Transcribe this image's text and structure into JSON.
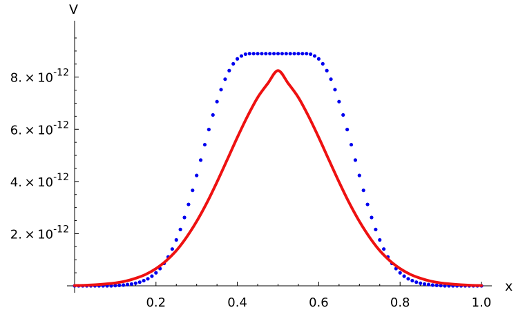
{
  "chart_data": {
    "type": "line",
    "xlabel": "x",
    "ylabel": "V",
    "xlim": [
      0.0,
      1.0
    ],
    "ylim": [
      0,
      9.5e-12
    ],
    "x_ticks": [
      {
        "value": 0.2,
        "label": "0.2"
      },
      {
        "value": 0.4,
        "label": "0.4"
      },
      {
        "value": 0.6,
        "label": "0.6"
      },
      {
        "value": 0.8,
        "label": "0.8"
      },
      {
        "value": 1.0,
        "label": "1.0"
      }
    ],
    "y_ticks": [
      {
        "value": 2e-12,
        "mantissa": "2.",
        "base": "10",
        "exponent": "-12"
      },
      {
        "value": 4e-12,
        "mantissa": "4.",
        "base": "10",
        "exponent": "-12"
      },
      {
        "value": 6e-12,
        "mantissa": "6.",
        "base": "10",
        "exponent": "-12"
      },
      {
        "value": 8e-12,
        "mantissa": "8.",
        "base": "10",
        "exponent": "-12"
      }
    ],
    "grid": false,
    "series": [
      {
        "style": "points",
        "color": "#0000ee",
        "x": [
          0.0,
          0.01,
          0.02,
          0.03,
          0.04,
          0.05,
          0.06,
          0.07,
          0.08,
          0.09,
          0.1,
          0.11,
          0.12,
          0.13,
          0.14,
          0.15,
          0.16,
          0.17,
          0.18,
          0.19,
          0.2,
          0.21,
          0.22,
          0.23,
          0.24,
          0.25,
          0.26,
          0.27,
          0.28,
          0.29,
          0.3,
          0.31,
          0.32,
          0.33,
          0.34,
          0.35,
          0.36,
          0.37,
          0.38,
          0.39,
          0.4,
          0.41,
          0.42,
          0.43,
          0.44,
          0.45,
          0.46,
          0.47,
          0.48,
          0.49,
          0.5,
          0.51,
          0.52,
          0.53,
          0.54,
          0.55,
          0.56,
          0.57,
          0.58,
          0.59,
          0.6,
          0.61,
          0.62,
          0.63,
          0.64,
          0.65,
          0.66,
          0.67,
          0.68,
          0.69,
          0.7,
          0.71,
          0.72,
          0.73,
          0.74,
          0.75,
          0.76,
          0.77,
          0.78,
          0.79,
          0.8,
          0.81,
          0.82,
          0.83,
          0.84,
          0.85,
          0.86,
          0.87,
          0.88,
          0.89,
          0.9,
          0.91,
          0.92,
          0.93,
          0.94,
          0.95,
          0.96,
          0.97,
          0.98,
          0.99,
          1.0
        ],
        "y": [
          0.0,
          0.0,
          0.0,
          0.0,
          0.0,
          0.0,
          0.0,
          0.0,
          0.0,
          0.0,
          1e-14,
          2e-14,
          3e-14,
          5e-14,
          7e-14,
          1e-13,
          1.4e-13,
          2e-13,
          2.7e-13,
          3.7e-13,
          5e-13,
          6.6e-13,
          8.6e-13,
          1.11e-12,
          1.41e-12,
          1.76e-12,
          2.16e-12,
          2.62e-12,
          3.12e-12,
          3.66e-12,
          4.23e-12,
          4.82e-12,
          5.41e-12,
          5.99e-12,
          6.55e-12,
          7.06e-12,
          7.52e-12,
          7.92e-12,
          8.25e-12,
          8.51e-12,
          8.7e-12,
          8.81e-12,
          8.88e-12,
          8.9e-12,
          8.9e-12,
          8.9e-12,
          8.9e-12,
          8.9e-12,
          8.9e-12,
          8.9e-12,
          8.9e-12,
          8.9e-12,
          8.9e-12,
          8.9e-12,
          8.9e-12,
          8.9e-12,
          8.9e-12,
          8.9e-12,
          8.88e-12,
          8.81e-12,
          8.7e-12,
          8.51e-12,
          8.25e-12,
          7.92e-12,
          7.52e-12,
          7.06e-12,
          6.55e-12,
          5.99e-12,
          5.41e-12,
          4.82e-12,
          4.23e-12,
          3.66e-12,
          3.12e-12,
          2.62e-12,
          2.16e-12,
          1.76e-12,
          1.41e-12,
          1.11e-12,
          8.6e-13,
          6.6e-13,
          5e-13,
          3.7e-13,
          2.7e-13,
          2e-13,
          1.4e-13,
          1e-13,
          7e-14,
          5e-14,
          3e-14,
          2e-14,
          1e-14,
          0.0,
          0.0,
          0.0,
          0.0,
          0.0,
          0.0,
          0.0,
          0.0,
          0.0,
          0.0
        ]
      },
      {
        "style": "line",
        "color": "#ee1111",
        "x": [
          0.0,
          0.025,
          0.05,
          0.075,
          0.1,
          0.125,
          0.15,
          0.175,
          0.2,
          0.225,
          0.25,
          0.275,
          0.3,
          0.325,
          0.35,
          0.375,
          0.4,
          0.425,
          0.45,
          0.475,
          0.5,
          0.525,
          0.55,
          0.575,
          0.6,
          0.625,
          0.65,
          0.675,
          0.7,
          0.725,
          0.75,
          0.775,
          0.8,
          0.825,
          0.85,
          0.875,
          0.9,
          0.925,
          0.95,
          0.975,
          1.0
        ],
        "y": [
          1e-14,
          2e-14,
          4e-14,
          7e-14,
          1.1e-13,
          1.8e-13,
          2.9e-13,
          4.4e-13,
          6.6e-13,
          9.6e-13,
          1.35e-12,
          1.86e-12,
          2.47e-12,
          3.18e-12,
          3.98e-12,
          4.83e-12,
          5.69e-12,
          6.5e-12,
          7.22e-12,
          7.76e-12,
          8.25e-12,
          7.76e-12,
          7.22e-12,
          6.5e-12,
          5.69e-12,
          4.83e-12,
          3.98e-12,
          3.18e-12,
          2.47e-12,
          1.86e-12,
          1.35e-12,
          9.6e-13,
          6.6e-13,
          4.4e-13,
          2.9e-13,
          1.8e-13,
          1.1e-13,
          7e-14,
          4e-14,
          2e-14,
          1e-14
        ]
      }
    ]
  }
}
